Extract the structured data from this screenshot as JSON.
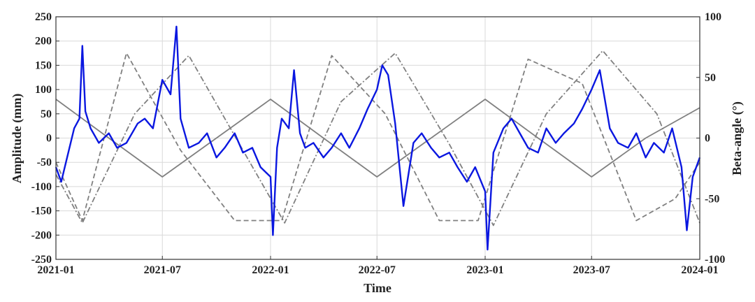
{
  "chart_data": {
    "type": "line",
    "xlabel": "Time",
    "ylabel": "Amplitude (mm)",
    "y2label": "Beta-angle (°)",
    "xlim": [
      "2021-01-01",
      "2024-01-01"
    ],
    "ylim": [
      -250,
      250
    ],
    "y2lim": [
      -100,
      100
    ],
    "xticks": [
      "2021-01",
      "2021-07",
      "2022-01",
      "2022-07",
      "2023-01",
      "2023-07",
      "2024-01"
    ],
    "yticks": [
      "250",
      "200",
      "150",
      "100",
      "50",
      "0",
      "-50",
      "-100",
      "-150",
      "-200",
      "-250"
    ],
    "y2ticks": [
      "100",
      "50",
      "0",
      "-50",
      "-100"
    ],
    "grid": true,
    "series": [
      {
        "style": "solid",
        "color": "#0a17e0",
        "axis": "left",
        "x": [
          "2021-01-01",
          "2021-01-10",
          "2021-01-20",
          "2021-02-01",
          "2021-02-10",
          "2021-02-15",
          "2021-02-20",
          "2021-03-01",
          "2021-03-15",
          "2021-04-01",
          "2021-04-15",
          "2021-05-01",
          "2021-05-20",
          "2021-06-01",
          "2021-06-15",
          "2021-07-01",
          "2021-07-15",
          "2021-07-25",
          "2021-08-01",
          "2021-08-15",
          "2021-09-01",
          "2021-09-15",
          "2021-10-01",
          "2021-10-15",
          "2021-11-01",
          "2021-11-15",
          "2021-12-01",
          "2021-12-15",
          "2022-01-01",
          "2022-01-05",
          "2022-01-12",
          "2022-01-20",
          "2022-02-01",
          "2022-02-10",
          "2022-02-20",
          "2022-03-01",
          "2022-03-15",
          "2022-04-01",
          "2022-04-15",
          "2022-05-01",
          "2022-05-15",
          "2022-06-01",
          "2022-06-15",
          "2022-07-01",
          "2022-07-10",
          "2022-07-20",
          "2022-08-01",
          "2022-08-15",
          "2022-09-01",
          "2022-09-15",
          "2022-10-01",
          "2022-10-15",
          "2022-11-01",
          "2022-11-15",
          "2022-12-01",
          "2022-12-15",
          "2023-01-01",
          "2023-01-05",
          "2023-01-15",
          "2023-02-01",
          "2023-02-15",
          "2023-03-01",
          "2023-03-15",
          "2023-04-01",
          "2023-04-15",
          "2023-05-01",
          "2023-05-15",
          "2023-06-01",
          "2023-06-15",
          "2023-07-01",
          "2023-07-15",
          "2023-08-01",
          "2023-08-15",
          "2023-09-01",
          "2023-09-15",
          "2023-10-01",
          "2023-10-15",
          "2023-11-01",
          "2023-11-15",
          "2023-12-01",
          "2023-12-10",
          "2023-12-20",
          "2024-01-01"
        ],
        "values": [
          -60,
          -90,
          -40,
          20,
          40,
          190,
          55,
          20,
          -10,
          10,
          -20,
          -10,
          30,
          40,
          20,
          120,
          90,
          230,
          40,
          -20,
          -10,
          10,
          -40,
          -20,
          10,
          -30,
          -20,
          -60,
          -80,
          -200,
          -20,
          40,
          20,
          140,
          10,
          -20,
          -10,
          -40,
          -20,
          10,
          -20,
          20,
          60,
          100,
          150,
          130,
          30,
          -140,
          -10,
          10,
          -20,
          -40,
          -30,
          -60,
          -90,
          -60,
          -110,
          -230,
          -30,
          20,
          40,
          10,
          -20,
          -30,
          20,
          -10,
          10,
          30,
          60,
          100,
          140,
          20,
          -10,
          -20,
          10,
          -40,
          -10,
          -30,
          20,
          -60,
          -190,
          -80,
          -40
        ]
      },
      {
        "style": "solid",
        "color": "#808080",
        "axis": "right",
        "x": [
          "2021-01-01",
          "2021-04-01",
          "2021-07-01",
          "2021-10-01",
          "2022-01-01",
          "2022-04-01",
          "2022-07-01",
          "2022-10-01",
          "2023-01-01",
          "2023-04-01",
          "2023-07-01",
          "2023-10-01",
          "2024-01-01"
        ],
        "values": [
          32,
          0,
          -32,
          0,
          32,
          0,
          -32,
          0,
          32,
          0,
          -32,
          0,
          25
        ]
      },
      {
        "style": "dashed",
        "color": "#808080",
        "axis": "right",
        "x": [
          "2021-01-01",
          "2021-02-15",
          "2021-05-01",
          "2021-08-01",
          "2021-11-01",
          "2022-01-20",
          "2022-04-15",
          "2022-07-15",
          "2022-10-15",
          "2022-12-20",
          "2023-03-15",
          "2023-06-15",
          "2023-09-15",
          "2023-11-20",
          "2024-01-01"
        ],
        "values": [
          -20,
          -68,
          70,
          -10,
          -68,
          -68,
          68,
          20,
          -68,
          -68,
          65,
          45,
          -68,
          -50,
          -20
        ]
      },
      {
        "style": "dashdot",
        "color": "#808080",
        "axis": "right",
        "x": [
          "2021-01-01",
          "2021-02-15",
          "2021-05-15",
          "2021-08-15",
          "2021-11-15",
          "2022-01-25",
          "2022-05-01",
          "2022-08-01",
          "2022-11-01",
          "2023-01-15",
          "2023-04-15",
          "2023-07-20",
          "2023-10-20",
          "2024-01-01"
        ],
        "values": [
          -30,
          -70,
          20,
          68,
          -10,
          -70,
          30,
          70,
          -5,
          -72,
          20,
          72,
          20,
          -70
        ]
      }
    ]
  }
}
